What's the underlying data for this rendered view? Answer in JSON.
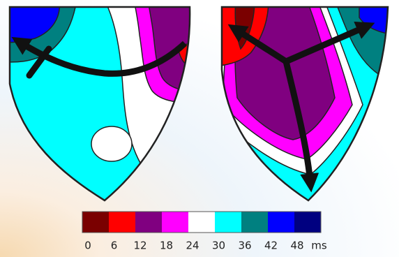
{
  "colorbar": {
    "colors": [
      "#7a0000",
      "#ff0000",
      "#800080",
      "#ff00ff",
      "#ffffff",
      "#00ffff",
      "#008080",
      "#0000ff",
      "#000080"
    ],
    "ticks": [
      0,
      6,
      12,
      18,
      24,
      30,
      36,
      42,
      48
    ],
    "unit": "ms"
  }
}
